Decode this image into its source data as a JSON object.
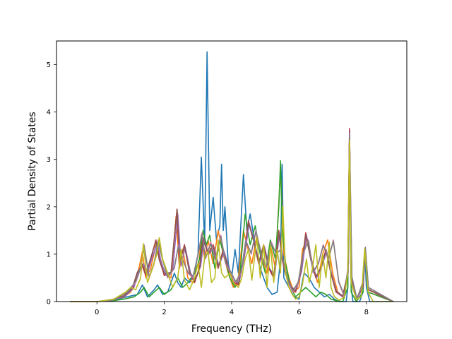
{
  "chart_data": {
    "type": "line",
    "title": "",
    "xlabel": "Frequency (THz)",
    "ylabel": "Partial Density of States",
    "xlim": [
      -1.2,
      9.2
    ],
    "ylim": [
      0,
      5.5
    ],
    "xticks": [
      0,
      2,
      4,
      6,
      8
    ],
    "yticks": [
      0,
      1,
      2,
      3,
      4,
      5
    ],
    "grid": false,
    "legend": "none",
    "series": [
      {
        "color": "#1f77b4",
        "x": [
          -0.8,
          0.0,
          0.3,
          0.6,
          0.9,
          1.2,
          1.35,
          1.5,
          1.7,
          1.8,
          1.95,
          2.1,
          2.3,
          2.4,
          2.5,
          2.6,
          2.75,
          2.9,
          3.0,
          3.1,
          3.2,
          3.27,
          3.35,
          3.45,
          3.55,
          3.65,
          3.7,
          3.75,
          3.8,
          3.9,
          4.0,
          4.1,
          4.2,
          4.35,
          4.45,
          4.55,
          4.65,
          4.75,
          4.85,
          4.95,
          5.05,
          5.2,
          5.35,
          5.45,
          5.5,
          5.55,
          5.7,
          5.85,
          6.0,
          6.15,
          6.3,
          6.45,
          6.6,
          6.75,
          6.9,
          7.05,
          7.2,
          7.4,
          7.45,
          7.5,
          7.55,
          7.6,
          7.8,
          7.9,
          7.95,
          8.0,
          8.1,
          8.8
        ],
        "y": [
          0,
          0,
          0.02,
          0.05,
          0.1,
          0.15,
          0.35,
          0.1,
          0.25,
          0.35,
          0.15,
          0.2,
          0.6,
          0.4,
          0.3,
          0.5,
          0.4,
          0.6,
          1.0,
          3.05,
          1.2,
          5.27,
          1.5,
          2.2,
          1.3,
          1.6,
          2.9,
          1.5,
          2.0,
          0.8,
          0.5,
          1.1,
          0.6,
          2.68,
          1.5,
          1.85,
          1.4,
          1.0,
          0.7,
          0.5,
          0.3,
          0.15,
          0.2,
          0.9,
          2.9,
          0.5,
          0.3,
          0.1,
          0.05,
          0.6,
          0.5,
          0.3,
          0.2,
          0.1,
          0.15,
          0.05,
          0.0,
          0.0,
          0.3,
          3.6,
          0.3,
          0.0,
          0.0,
          0.2,
          1.1,
          0.3,
          0.0,
          0
        ]
      },
      {
        "color": "#ff7f0e",
        "x": [
          -0.8,
          0.0,
          0.4,
          0.8,
          1.0,
          1.2,
          1.35,
          1.45,
          1.6,
          1.75,
          1.85,
          2.0,
          2.2,
          2.35,
          2.45,
          2.55,
          2.7,
          2.85,
          3.0,
          3.1,
          3.2,
          3.3,
          3.45,
          3.6,
          3.75,
          3.9,
          4.05,
          4.2,
          4.35,
          4.45,
          4.6,
          4.75,
          4.9,
          5.05,
          5.15,
          5.3,
          5.45,
          5.55,
          5.7,
          5.85,
          6.0,
          6.1,
          6.25,
          6.4,
          6.55,
          6.7,
          6.85,
          7.0,
          7.15,
          7.3,
          7.45,
          7.5,
          7.55,
          7.7,
          7.9,
          7.97,
          8.05,
          8.8
        ],
        "y": [
          0,
          0,
          0.03,
          0.1,
          0.2,
          0.55,
          1.05,
          0.5,
          0.7,
          1.2,
          1.0,
          0.6,
          0.5,
          1.8,
          0.7,
          1.1,
          0.5,
          0.4,
          0.6,
          1.4,
          0.9,
          1.3,
          0.8,
          1.5,
          1.0,
          0.6,
          0.3,
          0.5,
          1.5,
          1.2,
          0.8,
          1.4,
          0.9,
          0.6,
          1.2,
          0.7,
          2.8,
          1.0,
          0.5,
          0.2,
          0.3,
          1.1,
          1.3,
          0.8,
          0.4,
          1.0,
          1.3,
          0.6,
          0.2,
          0.1,
          0.5,
          3.5,
          0.4,
          0.05,
          0.3,
          1.1,
          0.2,
          0
        ]
      },
      {
        "color": "#2ca02c",
        "x": [
          -0.8,
          0.0,
          0.5,
          0.8,
          1.1,
          1.3,
          1.4,
          1.55,
          1.7,
          1.85,
          2.0,
          2.2,
          2.4,
          2.55,
          2.7,
          2.9,
          3.05,
          3.15,
          3.25,
          3.35,
          3.5,
          3.65,
          3.8,
          3.95,
          4.1,
          4.25,
          4.4,
          4.55,
          4.7,
          4.85,
          5.0,
          5.15,
          5.3,
          5.4,
          5.45,
          5.5,
          5.6,
          5.75,
          5.9,
          6.05,
          6.2,
          6.35,
          6.5,
          6.65,
          6.8,
          6.95,
          7.1,
          7.3,
          7.45,
          7.5,
          7.55,
          7.7,
          7.9,
          7.97,
          8.05,
          8.8
        ],
        "y": [
          0,
          0,
          0.02,
          0.05,
          0.1,
          0.2,
          0.3,
          0.1,
          0.2,
          0.3,
          0.15,
          0.25,
          0.5,
          0.3,
          0.4,
          0.6,
          0.9,
          1.5,
          1.2,
          1.4,
          0.7,
          1.3,
          0.9,
          0.5,
          0.3,
          0.6,
          1.85,
          1.2,
          1.6,
          1.0,
          0.6,
          1.3,
          0.9,
          2.0,
          2.97,
          1.6,
          0.8,
          0.3,
          0.1,
          0.2,
          0.3,
          0.2,
          0.1,
          0.2,
          0.15,
          0.05,
          0.02,
          0.0,
          0.3,
          3.5,
          0.2,
          0.0,
          0.2,
          1.1,
          0.2,
          0
        ]
      },
      {
        "color": "#d62728",
        "x": [
          -0.8,
          0.0,
          0.4,
          0.8,
          1.05,
          1.2,
          1.35,
          1.45,
          1.6,
          1.75,
          1.85,
          2.0,
          2.2,
          2.38,
          2.45,
          2.6,
          2.75,
          2.9,
          3.05,
          3.15,
          3.3,
          3.45,
          3.6,
          3.75,
          3.9,
          4.05,
          4.2,
          4.35,
          4.5,
          4.65,
          4.8,
          4.95,
          5.1,
          5.25,
          5.4,
          5.5,
          5.6,
          5.75,
          5.9,
          6.05,
          6.2,
          6.35,
          6.5,
          6.65,
          6.8,
          6.95,
          7.1,
          7.3,
          7.45,
          7.5,
          7.55,
          7.7,
          7.9,
          7.97,
          8.05,
          8.8
        ],
        "y": [
          0,
          0,
          0.03,
          0.12,
          0.25,
          0.6,
          0.75,
          0.55,
          0.9,
          1.3,
          0.9,
          0.55,
          0.6,
          1.95,
          0.8,
          1.2,
          0.6,
          0.4,
          0.7,
          1.35,
          1.0,
          1.2,
          0.7,
          1.1,
          0.7,
          0.4,
          0.35,
          0.9,
          1.7,
          1.3,
          0.8,
          1.2,
          0.7,
          0.5,
          1.5,
          0.9,
          0.6,
          0.3,
          0.2,
          0.6,
          1.45,
          0.9,
          0.5,
          0.7,
          1.1,
          0.6,
          0.2,
          0.1,
          0.6,
          3.65,
          0.5,
          0.05,
          0.3,
          1.1,
          0.25,
          0
        ]
      },
      {
        "color": "#9467bd",
        "x": [
          -0.8,
          0.0,
          0.45,
          0.85,
          1.1,
          1.25,
          1.38,
          1.5,
          1.65,
          1.8,
          1.9,
          2.05,
          2.25,
          2.4,
          2.5,
          2.62,
          2.78,
          2.92,
          3.08,
          3.18,
          3.32,
          3.48,
          3.62,
          3.78,
          3.92,
          4.08,
          4.22,
          4.38,
          4.52,
          4.68,
          4.82,
          4.98,
          5.12,
          5.28,
          5.42,
          5.52,
          5.62,
          5.78,
          5.92,
          6.08,
          6.22,
          6.38,
          6.52,
          6.68,
          6.82,
          6.98,
          7.12,
          7.32,
          7.46,
          7.5,
          7.56,
          7.72,
          7.9,
          7.97,
          8.06,
          8.8
        ],
        "y": [
          0,
          0,
          0.03,
          0.12,
          0.3,
          0.65,
          0.8,
          0.6,
          0.95,
          1.25,
          0.85,
          0.55,
          0.65,
          1.85,
          0.75,
          1.15,
          0.6,
          0.45,
          0.75,
          1.3,
          1.0,
          1.15,
          0.75,
          1.05,
          0.7,
          0.45,
          0.4,
          0.95,
          1.65,
          1.25,
          0.8,
          1.15,
          0.7,
          0.55,
          1.45,
          0.85,
          0.55,
          0.3,
          0.25,
          0.65,
          1.4,
          0.85,
          0.5,
          0.75,
          1.05,
          0.55,
          0.2,
          0.1,
          0.6,
          3.62,
          0.45,
          0.05,
          0.3,
          1.1,
          0.25,
          0
        ]
      },
      {
        "color": "#8c564b",
        "x": [
          -0.8,
          0.0,
          0.4,
          0.8,
          1.05,
          1.2,
          1.35,
          1.45,
          1.6,
          1.75,
          1.85,
          2.0,
          2.2,
          2.38,
          2.45,
          2.6,
          2.75,
          2.9,
          3.05,
          3.15,
          3.3,
          3.45,
          3.6,
          3.75,
          3.9,
          4.05,
          4.2,
          4.35,
          4.5,
          4.65,
          4.8,
          4.95,
          5.1,
          5.25,
          5.4,
          5.5,
          5.6,
          5.75,
          5.9,
          6.05,
          6.2,
          6.35,
          6.5,
          6.65,
          6.8,
          6.95,
          7.1,
          7.3,
          7.45,
          7.5,
          7.55,
          7.7,
          7.9,
          7.97,
          8.05,
          8.8
        ],
        "y": [
          0,
          0,
          0.03,
          0.12,
          0.28,
          0.62,
          0.78,
          0.58,
          0.92,
          1.28,
          0.88,
          0.58,
          0.62,
          1.95,
          0.82,
          1.18,
          0.62,
          0.42,
          0.72,
          1.32,
          1.02,
          1.18,
          0.72,
          1.08,
          0.72,
          0.42,
          0.38,
          0.92,
          1.68,
          1.28,
          0.82,
          1.18,
          0.72,
          0.52,
          1.48,
          0.88,
          0.58,
          0.32,
          0.22,
          0.62,
          1.42,
          0.88,
          0.52,
          0.72,
          1.08,
          0.58,
          0.22,
          0.12,
          0.62,
          3.6,
          0.48,
          0.06,
          0.32,
          1.12,
          0.26,
          0
        ]
      },
      {
        "color": "#e377c2",
        "x": [
          -0.8,
          0.0,
          0.5,
          0.9,
          1.15,
          1.3,
          1.4,
          1.55,
          1.7,
          1.82,
          1.95,
          2.1,
          2.3,
          2.42,
          2.55,
          2.7,
          2.85,
          3.0,
          3.12,
          3.22,
          3.38,
          3.52,
          3.68,
          3.82,
          3.98,
          4.12,
          4.28,
          4.42,
          4.58,
          4.72,
          4.88,
          5.02,
          5.18,
          5.32,
          5.45,
          5.55,
          5.68,
          5.82,
          5.98,
          6.12,
          6.28,
          6.42,
          6.58,
          6.72,
          6.88,
          7.02,
          7.18,
          7.35,
          7.47,
          7.5,
          7.57,
          7.72,
          7.9,
          7.97,
          8.06,
          8.8
        ],
        "y": [
          0,
          0,
          0.04,
          0.2,
          0.4,
          0.7,
          1.2,
          0.5,
          0.8,
          1.3,
          0.9,
          0.5,
          0.7,
          1.2,
          0.9,
          0.6,
          0.5,
          1.0,
          1.45,
          0.9,
          1.25,
          0.9,
          1.4,
          0.8,
          0.6,
          0.4,
          0.6,
          1.3,
          1.0,
          1.5,
          1.0,
          0.7,
          1.25,
          1.0,
          1.1,
          0.8,
          0.4,
          0.2,
          0.4,
          1.0,
          1.3,
          0.6,
          0.8,
          1.2,
          0.9,
          1.3,
          0.4,
          0.1,
          0.8,
          3.55,
          0.5,
          0.05,
          0.4,
          1.15,
          0.3,
          0
        ]
      },
      {
        "color": "#7f7f7f",
        "x": [
          -0.8,
          0.0,
          0.5,
          0.9,
          1.15,
          1.3,
          1.4,
          1.55,
          1.7,
          1.82,
          1.95,
          2.1,
          2.3,
          2.42,
          2.55,
          2.7,
          2.85,
          3.0,
          3.12,
          3.22,
          3.38,
          3.52,
          3.68,
          3.82,
          3.98,
          4.12,
          4.28,
          4.42,
          4.58,
          4.72,
          4.88,
          5.02,
          5.18,
          5.32,
          5.45,
          5.55,
          5.68,
          5.82,
          5.98,
          6.12,
          6.28,
          6.42,
          6.58,
          6.72,
          6.88,
          7.02,
          7.18,
          7.35,
          7.47,
          7.5,
          7.57,
          7.72,
          7.9,
          7.97,
          8.06,
          8.8
        ],
        "y": [
          0,
          0,
          0.04,
          0.2,
          0.42,
          0.72,
          1.18,
          0.52,
          0.82,
          1.28,
          0.88,
          0.52,
          0.72,
          1.18,
          0.88,
          0.62,
          0.52,
          0.98,
          1.42,
          0.92,
          1.22,
          0.88,
          1.38,
          0.82,
          0.62,
          0.42,
          0.62,
          1.28,
          1.02,
          1.48,
          1.02,
          0.72,
          1.22,
          1.02,
          1.08,
          0.82,
          0.42,
          0.22,
          0.42,
          1.02,
          1.28,
          0.62,
          0.82,
          1.18,
          0.92,
          1.28,
          0.42,
          0.12,
          0.82,
          3.52,
          0.52,
          0.06,
          0.42,
          1.14,
          0.3,
          0
        ]
      },
      {
        "color": "#bcbd22",
        "x": [
          -0.8,
          0.0,
          0.5,
          0.85,
          1.0,
          1.15,
          1.3,
          1.38,
          1.5,
          1.65,
          1.78,
          1.85,
          1.95,
          2.1,
          2.25,
          2.4,
          2.5,
          2.6,
          2.75,
          2.9,
          3.0,
          3.1,
          3.2,
          3.3,
          3.4,
          3.5,
          3.6,
          3.7,
          3.8,
          3.95,
          4.05,
          4.2,
          4.3,
          4.4,
          4.5,
          4.6,
          4.75,
          4.85,
          4.95,
          5.05,
          5.15,
          5.25,
          5.35,
          5.45,
          5.52,
          5.6,
          5.7,
          5.8,
          5.9,
          6.0,
          6.1,
          6.22,
          6.3,
          6.4,
          6.5,
          6.6,
          6.7,
          6.8,
          6.9,
          6.95,
          7.05,
          7.2,
          7.35,
          7.45,
          7.5,
          7.55,
          7.7,
          7.85,
          7.95,
          8.05,
          8.2,
          8.8
        ],
        "y": [
          0,
          0,
          0.05,
          0.2,
          0.3,
          0.25,
          0.5,
          1.22,
          0.4,
          0.7,
          1.0,
          1.35,
          0.9,
          0.6,
          0.3,
          0.5,
          1.1,
          0.45,
          0.25,
          0.5,
          0.8,
          0.3,
          0.95,
          1.05,
          0.4,
          0.5,
          1.3,
          0.6,
          0.5,
          0.6,
          0.4,
          0.3,
          0.5,
          0.9,
          1.1,
          0.45,
          1.35,
          0.5,
          1.2,
          0.3,
          1.2,
          0.4,
          1.1,
          0.6,
          2.0,
          0.6,
          0.3,
          0.15,
          0.05,
          0.1,
          0.35,
          0.9,
          0.4,
          0.7,
          1.2,
          0.3,
          1.0,
          0.5,
          1.25,
          0.3,
          0.1,
          0.03,
          0.1,
          0.6,
          3.4,
          0.4,
          0.05,
          0.1,
          1.12,
          0.2,
          0.0,
          0
        ]
      }
    ]
  }
}
